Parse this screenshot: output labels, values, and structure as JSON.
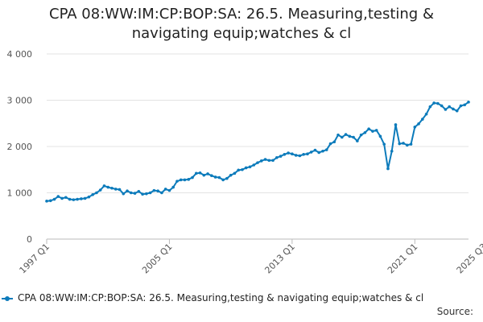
{
  "chart_data": {
    "type": "line",
    "title_line1": "CPA 08:WW:IM:CP:BOP:SA: 26.5. Measuring,testing &",
    "title_line2": "navigating equip;watches & cl",
    "xlabel": "",
    "ylabel": "",
    "ylim": [
      0,
      4000
    ],
    "y_ticks": [
      0,
      1000,
      2000,
      3000,
      4000
    ],
    "y_tick_labels": [
      "0",
      "1 000",
      "2 000",
      "3 000",
      "4 000"
    ],
    "x_tick_labels": [
      "1997 Q1",
      "2005 Q1",
      "2013 Q1",
      "2021 Q1",
      "2025 Q3"
    ],
    "x_tick_indices": [
      0,
      32,
      64,
      96,
      114
    ],
    "grid": true,
    "series": [
      {
        "name": "CPA 08:WW:IM:CP:BOP:SA: 26.5. Measuring,testing & navigating equip;watches & cl",
        "color": "#0c7bbb",
        "values": [
          820,
          830,
          860,
          920,
          880,
          900,
          860,
          850,
          860,
          870,
          880,
          910,
          960,
          1000,
          1060,
          1150,
          1120,
          1100,
          1080,
          1070,
          980,
          1040,
          1000,
          990,
          1030,
          970,
          980,
          1000,
          1050,
          1040,
          1000,
          1080,
          1050,
          1120,
          1250,
          1280,
          1280,
          1290,
          1330,
          1420,
          1430,
          1380,
          1410,
          1370,
          1340,
          1330,
          1280,
          1310,
          1380,
          1420,
          1490,
          1500,
          1540,
          1560,
          1600,
          1650,
          1690,
          1720,
          1700,
          1700,
          1760,
          1790,
          1830,
          1860,
          1840,
          1810,
          1800,
          1830,
          1840,
          1880,
          1920,
          1870,
          1900,
          1930,
          2060,
          2100,
          2250,
          2200,
          2260,
          2220,
          2200,
          2120,
          2250,
          2300,
          2380,
          2330,
          2350,
          2220,
          2050,
          1520,
          1900,
          2470,
          2060,
          2070,
          2030,
          2050,
          2420,
          2490,
          2590,
          2700,
          2860,
          2940,
          2930,
          2880,
          2800,
          2860,
          2810,
          2770,
          2880,
          2900,
          2960
        ]
      }
    ]
  },
  "legend": {
    "label": "CPA 08:WW:IM:CP:BOP:SA: 26.5. Measuring,testing & navigating equip;watches & cl"
  },
  "footer": {
    "source": "Source:"
  }
}
